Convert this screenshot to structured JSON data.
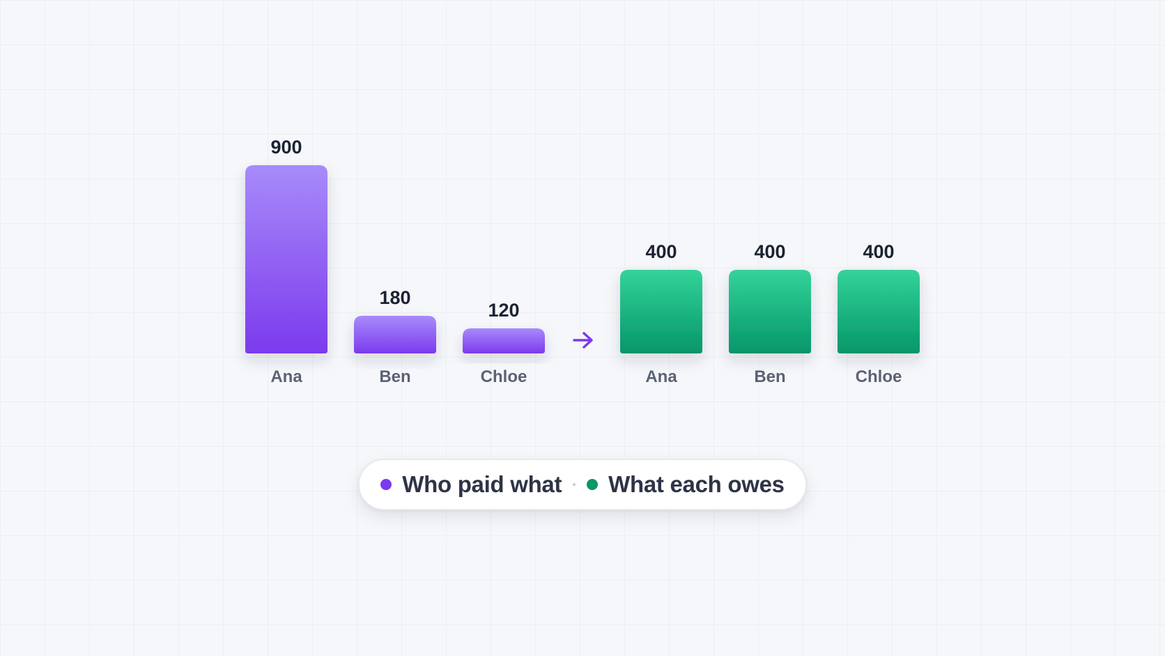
{
  "chart_data": {
    "type": "bar",
    "title": "",
    "xlabel": "",
    "ylabel": "",
    "ylim": [
      0,
      900
    ],
    "grid": true,
    "groups": [
      {
        "name": "Who paid what",
        "color": "#7c3aed",
        "color_light": "#a78bfa",
        "categories": [
          "Ana",
          "Ben",
          "Chloe"
        ],
        "values": [
          900,
          180,
          120
        ],
        "labels": [
          "900",
          "180",
          "120"
        ]
      },
      {
        "name": "What each owes",
        "color": "#059669",
        "color_light": "#34d399",
        "categories": [
          "Ana",
          "Ben",
          "Chloe"
        ],
        "values": [
          400,
          400,
          400
        ],
        "labels": [
          "400",
          "400",
          "400"
        ]
      }
    ],
    "connector": "arrow-right-icon",
    "legend_position": "bottom-center"
  },
  "legend": {
    "items": [
      {
        "label": "Who paid what",
        "color": "#7c3aed"
      },
      {
        "label": "What each owes",
        "color": "#059669"
      }
    ]
  }
}
